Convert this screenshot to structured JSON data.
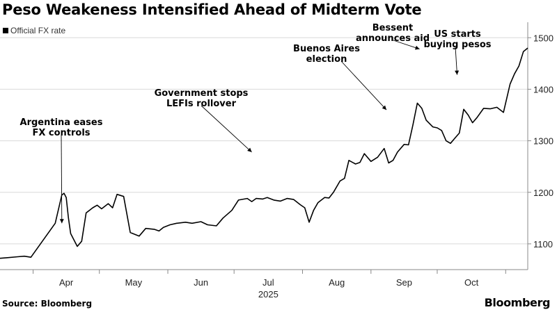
{
  "title": "Peso Weakeness Intensified Ahead of Midterm Vote",
  "source": "Source: Bloomberg",
  "brand": "Bloomberg",
  "colors": {
    "line": "#000000",
    "grid": "#d9d9d9",
    "axis": "#888888"
  },
  "chart_data": {
    "type": "line",
    "title": "Peso Weakeness Intensified Ahead of Midterm Vote",
    "legend": {
      "position": "top-left",
      "entries": [
        "Official FX rate"
      ]
    },
    "xaxis": {
      "ticks": [
        "Apr",
        "May",
        "Jun",
        "Jul",
        "Aug",
        "Sep",
        "Oct"
      ],
      "year_label": "2025"
    },
    "yaxis": {
      "side": "right",
      "ticks": [
        1100,
        1200,
        1300,
        1400,
        1500
      ],
      "ylim": [
        1050,
        1530
      ]
    },
    "grid": "horizontal",
    "series": [
      {
        "name": "Official FX rate",
        "x": [
          "2025-03-17",
          "2025-03-20",
          "2025-03-25",
          "2025-03-28",
          "2025-03-31",
          "2025-04-11",
          "2025-04-14",
          "2025-04-15",
          "2025-04-16",
          "2025-04-17",
          "2025-04-18",
          "2025-04-21",
          "2025-04-23",
          "2025-04-25",
          "2025-04-28",
          "2025-04-30",
          "2025-05-02",
          "2025-05-05",
          "2025-05-07",
          "2025-05-09",
          "2025-05-12",
          "2025-05-15",
          "2025-05-19",
          "2025-05-22",
          "2025-05-26",
          "2025-05-28",
          "2025-05-30",
          "2025-06-02",
          "2025-06-05",
          "2025-06-09",
          "2025-06-12",
          "2025-06-16",
          "2025-06-19",
          "2025-06-23",
          "2025-06-26",
          "2025-06-30",
          "2025-07-03",
          "2025-07-07",
          "2025-07-09",
          "2025-07-11",
          "2025-07-14",
          "2025-07-16",
          "2025-07-19",
          "2025-07-22",
          "2025-07-25",
          "2025-07-28",
          "2025-07-31",
          "2025-08-02",
          "2025-08-04",
          "2025-08-06",
          "2025-08-08",
          "2025-08-11",
          "2025-08-13",
          "2025-08-15",
          "2025-08-18",
          "2025-08-20",
          "2025-08-22",
          "2025-08-25",
          "2025-08-27",
          "2025-08-29",
          "2025-09-01",
          "2025-09-04",
          "2025-09-07",
          "2025-09-09",
          "2025-09-11",
          "2025-09-13",
          "2025-09-16",
          "2025-09-18",
          "2025-09-20",
          "2025-09-22",
          "2025-09-24",
          "2025-09-26",
          "2025-09-29",
          "2025-10-01",
          "2025-10-03",
          "2025-10-05",
          "2025-10-07",
          "2025-10-09",
          "2025-10-11",
          "2025-10-13",
          "2025-10-15",
          "2025-10-17",
          "2025-10-19",
          "2025-10-22",
          "2025-10-25",
          "2025-10-28",
          "2025-10-31",
          "2025-11-03",
          "2025-11-05",
          "2025-11-07",
          "2025-11-09",
          "2025-11-11"
        ],
        "values": [
          1072,
          1073,
          1075,
          1076,
          1074,
          1140,
          1195,
          1198,
          1190,
          1150,
          1120,
          1095,
          1105,
          1160,
          1170,
          1175,
          1168,
          1178,
          1170,
          1196,
          1192,
          1122,
          1115,
          1130,
          1128,
          1125,
          1132,
          1137,
          1140,
          1142,
          1140,
          1143,
          1137,
          1135,
          1150,
          1165,
          1185,
          1188,
          1182,
          1188,
          1187,
          1190,
          1185,
          1183,
          1188,
          1186,
          1176,
          1170,
          1142,
          1165,
          1180,
          1190,
          1189,
          1200,
          1222,
          1227,
          1262,
          1255,
          1258,
          1275,
          1260,
          1268,
          1285,
          1257,
          1262,
          1278,
          1293,
          1292,
          1331,
          1373,
          1363,
          1340,
          1327,
          1325,
          1320,
          1300,
          1295,
          1305,
          1315,
          1361,
          1350,
          1335,
          1345,
          1363,
          1362,
          1365,
          1355,
          1410,
          1430,
          1445,
          1473,
          1480
        ]
      }
    ],
    "annotations": [
      {
        "lines": [
          "Argentina eases",
          "FX controls"
        ],
        "target_date": "2025-04-14",
        "target_value": 1140
      },
      {
        "lines": [
          "Government stops",
          "LEFIs rollover"
        ],
        "target_date": "2025-07-09",
        "target_value": 1278
      },
      {
        "lines": [
          "Buenos Aires",
          "election"
        ],
        "target_date": "2025-09-08",
        "target_value": 1360
      },
      {
        "lines": [
          "Bessent",
          "announces aid"
        ],
        "target_date": "2025-09-23",
        "target_value": 1478
      },
      {
        "lines": [
          "US starts",
          "buying pesos"
        ],
        "target_date": "2025-10-10",
        "target_value": 1428
      }
    ]
  }
}
